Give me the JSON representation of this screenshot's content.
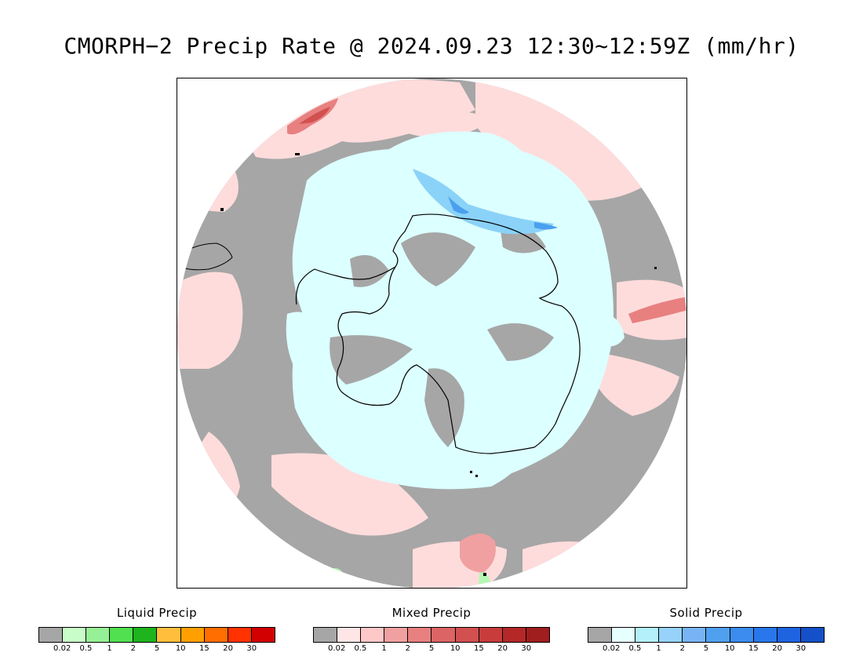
{
  "title": "CMORPH−2 Precip Rate @ 2024.09.23 12:30~12:59Z (mm/hr)",
  "colors": {
    "no_precip": "#a6a6a6",
    "mixed_light": "#ffdcdc",
    "solid_light": "#dcffff",
    "solid_mid": "#8ad2f8",
    "solid_blue": "#4aa0ee",
    "mixed_mid": "#f09a9a",
    "mixed_dark": "#e26464",
    "liquid_light": "#b4f8b4",
    "coastline": "#000000"
  },
  "legends": [
    {
      "title": "Liquid Precip",
      "colors": [
        "#a6a6a6",
        "#c8fcc8",
        "#96f096",
        "#50e050",
        "#1eb41e",
        "#ffbe3c",
        "#ffa000",
        "#ff6e00",
        "#ff3200",
        "#d20000"
      ],
      "ticks": [
        "0.02",
        "0.5",
        "1",
        "2",
        "5",
        "10",
        "15",
        "20",
        "30"
      ]
    },
    {
      "title": "Mixed Precip",
      "colors": [
        "#a6a6a6",
        "#ffe6e6",
        "#ffc8c8",
        "#f0a0a0",
        "#e88080",
        "#dc6464",
        "#d25050",
        "#c83c3c",
        "#b42828",
        "#a01e1e"
      ],
      "ticks": [
        "0.02",
        "0.5",
        "1",
        "2",
        "5",
        "10",
        "15",
        "20",
        "30"
      ]
    },
    {
      "title": "Solid Precip",
      "colors": [
        "#a6a6a6",
        "#e6ffff",
        "#b4f0fa",
        "#96d2fa",
        "#78b4f5",
        "#50a0f0",
        "#3c8cf0",
        "#2878eb",
        "#1e64e1",
        "#1450c8"
      ],
      "ticks": [
        "0.02",
        "0.5",
        "1",
        "2",
        "5",
        "10",
        "15",
        "20",
        "30"
      ]
    }
  ]
}
